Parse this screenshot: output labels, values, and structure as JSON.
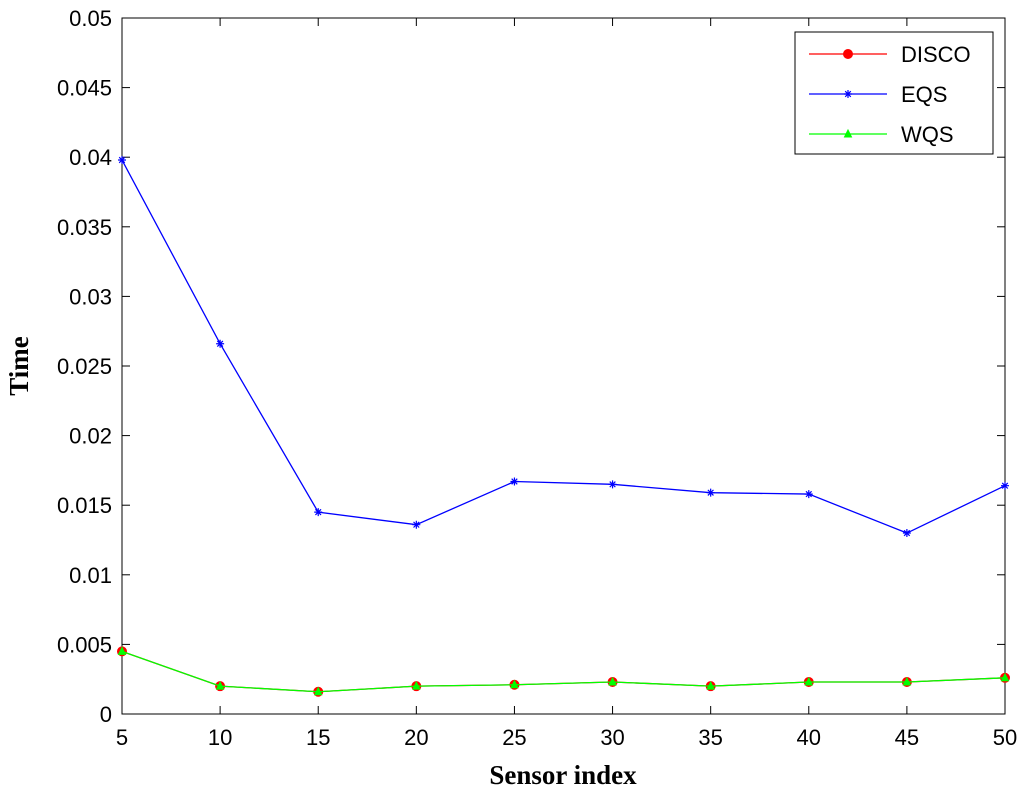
{
  "chart_data": {
    "type": "line",
    "title": "",
    "xlabel": "Sensor index",
    "ylabel": "Time",
    "x": [
      5,
      10,
      15,
      20,
      25,
      30,
      35,
      40,
      45,
      50
    ],
    "xticks": [
      "5",
      "10",
      "15",
      "20",
      "25",
      "30",
      "35",
      "40",
      "45",
      "50"
    ],
    "yticks": [
      "0",
      "0.005",
      "0.01",
      "0.015",
      "0.02",
      "0.025",
      "0.03",
      "0.035",
      "0.04",
      "0.045",
      "0.05"
    ],
    "xlim": [
      5,
      50
    ],
    "ylim": [
      0,
      0.05
    ],
    "grid": false,
    "legend_position": "top-right",
    "series": [
      {
        "name": "DISCO",
        "color": "#ff0000",
        "marker": "circle",
        "values": [
          0.0045,
          0.002,
          0.0016,
          0.002,
          0.0021,
          0.0023,
          0.002,
          0.0023,
          0.0023,
          0.0026
        ]
      },
      {
        "name": "EQS",
        "color": "#0000ff",
        "marker": "star",
        "values": [
          0.0398,
          0.0266,
          0.0145,
          0.0136,
          0.0167,
          0.0165,
          0.0159,
          0.0158,
          0.013,
          0.0164
        ]
      },
      {
        "name": "WQS",
        "color": "#00ff00",
        "marker": "triangle",
        "values": [
          0.0045,
          0.002,
          0.0016,
          0.002,
          0.0021,
          0.0023,
          0.002,
          0.0023,
          0.0023,
          0.0026
        ]
      }
    ]
  }
}
